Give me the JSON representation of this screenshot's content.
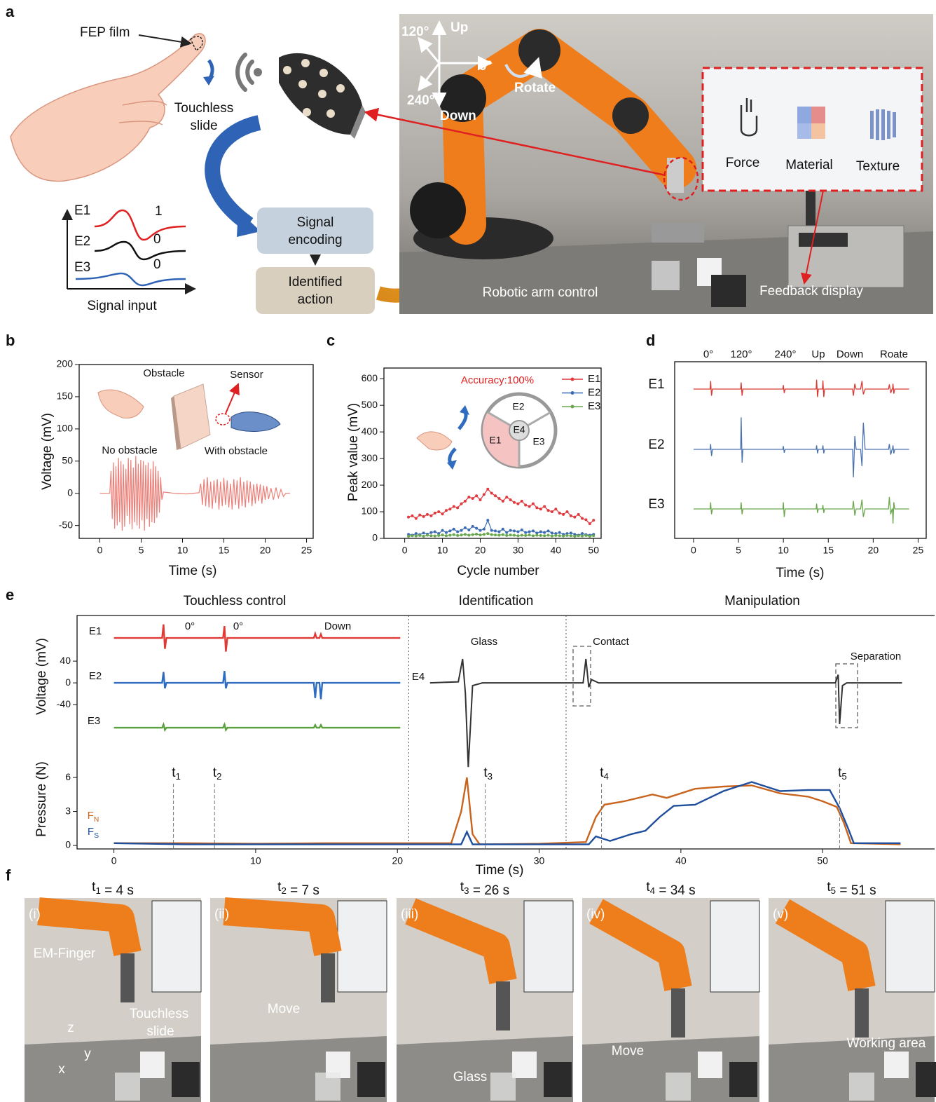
{
  "panel_labels": [
    "a",
    "b",
    "c",
    "d",
    "e",
    "f"
  ],
  "panel_a": {
    "fep_film": "FEP film",
    "touchless_slide": [
      "Touchless",
      "slide"
    ],
    "signal_input": {
      "rows": [
        {
          "name": "E1",
          "bit": "1"
        },
        {
          "name": "E2",
          "bit": "0"
        },
        {
          "name": "E3",
          "bit": "0"
        }
      ],
      "title": "Signal input"
    },
    "signal_encoding": [
      "Signal",
      "encoding"
    ],
    "identified_action": [
      "Identified",
      "action"
    ],
    "directions": {
      "angle_120": "120°",
      "up": "Up",
      "angle_0": "0°",
      "rotate": "Rotate",
      "angle_240": "240°",
      "down": "Down"
    },
    "screen": [
      "Force",
      "Material",
      "Texture"
    ],
    "robotic_arm_control": "Robotic arm control",
    "feedback_display": "Feedback display"
  },
  "chart_data": [
    {
      "type": "line",
      "x_label": "Time (s)",
      "y_label": "Voltage (mV)",
      "annotations": [
        "Obstacle",
        "Sensor",
        "No obstacle",
        "With obstacle"
      ],
      "xlim": [
        -2.5,
        25.8
      ],
      "xticks": [
        0,
        5,
        10,
        15,
        20,
        25
      ],
      "ylim": [
        -70,
        200
      ],
      "yticks": [
        -50,
        0,
        50,
        100,
        150,
        200
      ],
      "series": [
        {
          "color": "#ec7f78",
          "x": [
            0,
            1.2,
            1.35,
            1.5,
            1.65,
            1.8,
            1.95,
            2.1,
            2.25,
            2.4,
            2.55,
            2.7,
            2.85,
            3,
            3.15,
            3.3,
            3.45,
            3.6,
            3.75,
            3.9,
            4.05,
            4.2,
            4.35,
            4.5,
            4.65,
            4.8,
            4.95,
            5.1,
            5.25,
            5.4,
            5.55,
            5.7,
            5.85,
            6,
            6.15,
            6.3,
            6.45,
            6.6,
            6.75,
            6.9,
            7.05,
            7.2,
            7.35,
            7.5,
            7.7,
            9,
            10.5,
            12,
            12.2,
            12.4,
            12.6,
            12.8,
            13,
            13.2,
            13.4,
            13.6,
            13.8,
            14,
            14.2,
            14.4,
            14.6,
            14.8,
            15,
            15.2,
            15.4,
            15.6,
            15.8,
            16,
            16.2,
            16.4,
            16.6,
            16.8,
            17,
            17.2,
            17.4,
            17.6,
            17.8,
            18,
            18.2,
            18.4,
            18.6,
            18.8,
            19,
            19.2,
            19.4,
            19.6,
            19.8,
            20,
            20.2,
            20.4,
            20.7,
            21,
            21.3,
            21.6,
            21.9,
            22.2,
            22.5,
            23
          ],
          "values": [
            0,
            0,
            35,
            -40,
            48,
            -55,
            42,
            -50,
            55,
            -45,
            50,
            -58,
            45,
            -52,
            38,
            -35,
            55,
            -48,
            52,
            -56,
            40,
            -45,
            58,
            -50,
            46,
            -55,
            52,
            -42,
            50,
            -58,
            44,
            -40,
            48,
            -52,
            38,
            -45,
            50,
            -46,
            42,
            -38,
            35,
            -30,
            25,
            -10,
            2,
            0,
            -1,
            1,
            15,
            -18,
            22,
            -20,
            25,
            -22,
            18,
            -24,
            20,
            -15,
            22,
            -25,
            18,
            -20,
            24,
            -18,
            20,
            -22,
            15,
            -25,
            22,
            -18,
            20,
            -24,
            25,
            -20,
            18,
            -22,
            20,
            -15,
            18,
            -20,
            14,
            -16,
            15,
            -12,
            14,
            -16,
            12,
            -10,
            11,
            -9,
            8,
            -10,
            9,
            -7,
            6,
            -5,
            0,
            0
          ]
        }
      ]
    },
    {
      "type": "line",
      "x_label": "Cycle number",
      "y_label": "Peak value (mV)",
      "annotation": "Accuracy:100%",
      "inset_labels": [
        "E2",
        "E4",
        "E1",
        "E3"
      ],
      "xlim": [
        -5.5,
        52
      ],
      "xticks": [
        0,
        10,
        20,
        30,
        40,
        50
      ],
      "ylim": [
        0,
        640
      ],
      "yticks": [
        0,
        100,
        200,
        300,
        400,
        500,
        600
      ],
      "legend": "upper right",
      "x": [
        1,
        2,
        3,
        4,
        5,
        6,
        7,
        8,
        9,
        10,
        11,
        12,
        13,
        14,
        15,
        16,
        17,
        18,
        19,
        20,
        21,
        22,
        23,
        24,
        25,
        26,
        27,
        28,
        29,
        30,
        31,
        32,
        33,
        34,
        35,
        36,
        37,
        38,
        39,
        40,
        41,
        42,
        43,
        44,
        45,
        46,
        47,
        48,
        49,
        50
      ],
      "series": [
        {
          "name": "E1",
          "color": "#e0393e",
          "values": [
            80,
            85,
            75,
            88,
            82,
            90,
            85,
            95,
            100,
            92,
            105,
            110,
            120,
            115,
            130,
            140,
            155,
            150,
            160,
            145,
            165,
            185,
            170,
            160,
            150,
            140,
            155,
            145,
            135,
            130,
            140,
            125,
            120,
            130,
            115,
            110,
            120,
            105,
            100,
            110,
            95,
            90,
            100,
            85,
            80,
            90,
            75,
            70,
            55,
            68
          ]
        },
        {
          "name": "E2",
          "color": "#3c6cb4",
          "values": [
            15,
            12,
            18,
            14,
            20,
            16,
            22,
            25,
            18,
            30,
            22,
            28,
            35,
            25,
            30,
            40,
            32,
            45,
            38,
            30,
            35,
            68,
            30,
            28,
            25,
            35,
            22,
            30,
            28,
            25,
            32,
            22,
            25,
            28,
            20,
            25,
            22,
            28,
            20,
            18,
            22,
            15,
            18,
            20,
            15,
            12,
            18,
            14,
            12,
            15
          ]
        },
        {
          "name": "E3",
          "color": "#6aa84f",
          "values": [
            8,
            10,
            9,
            11,
            8,
            12,
            10,
            9,
            11,
            13,
            10,
            12,
            14,
            11,
            13,
            15,
            12,
            14,
            16,
            13,
            15,
            18,
            14,
            13,
            12,
            14,
            11,
            13,
            12,
            10,
            12,
            11,
            13,
            10,
            12,
            11,
            10,
            12,
            9,
            11,
            10,
            9,
            11,
            10,
            8,
            10,
            9,
            11,
            8,
            10
          ]
        }
      ]
    },
    {
      "type": "line",
      "x_label": "Time (s)",
      "columns": [
        "0°",
        "120°",
        "240°",
        "Up",
        "Down",
        "Roate"
      ],
      "xlim": [
        -2.1,
        25.9
      ],
      "xticks": [
        0,
        5,
        10,
        15,
        20,
        25
      ],
      "x": [
        0,
        1.85,
        1.9,
        2,
        2.1,
        5.25,
        5.3,
        5.4,
        5.5,
        9.95,
        10,
        10.1,
        10.2,
        13.65,
        13.7,
        13.8,
        13.9,
        14.35,
        14.4,
        14.5,
        14.6,
        17.7,
        17.8,
        17.95,
        18.1,
        18.6,
        18.75,
        18.9,
        19.1,
        21.7,
        21.8,
        21.95,
        22.1,
        22.15,
        22.2,
        22.3,
        22.4,
        24
      ],
      "series": [
        {
          "name": "E1",
          "color": "#d93a33",
          "values": [
            0,
            0,
            12,
            -10,
            0,
            0,
            10,
            -10,
            0,
            0,
            6,
            -6,
            0,
            0,
            14,
            -12,
            0,
            0,
            13,
            -12,
            0,
            0,
            -10,
            8,
            0,
            0,
            12,
            -8,
            0,
            0,
            7,
            -6,
            0,
            0,
            8,
            -7,
            0,
            0
          ]
        },
        {
          "name": "E2",
          "color": "#4a72b0",
          "values": [
            0,
            0,
            8,
            -10,
            0,
            0,
            48,
            -20,
            0,
            0,
            5,
            -5,
            0,
            0,
            6,
            -6,
            0,
            0,
            6,
            -6,
            0,
            0,
            -42,
            20,
            0,
            0,
            -25,
            40,
            0,
            0,
            8,
            -8,
            0,
            0,
            6,
            -6,
            0,
            0
          ]
        },
        {
          "name": "E3",
          "color": "#6aa84f",
          "values": [
            0,
            0,
            10,
            -8,
            0,
            0,
            10,
            -8,
            0,
            0,
            10,
            -12,
            0,
            0,
            8,
            -6,
            0,
            0,
            6,
            -6,
            0,
            0,
            12,
            -10,
            0,
            0,
            14,
            -12,
            0,
            0,
            18,
            -8,
            0,
            0,
            -22,
            10,
            0,
            0
          ]
        }
      ]
    },
    {
      "type": "line",
      "x_label": "Time (s)",
      "y_label": "Voltage (mV)",
      "y2_label": "Pressure (N)",
      "sections": [
        "Touchless control",
        "Identification",
        "Manipulation"
      ],
      "dividers": [
        20.8,
        31.9
      ],
      "annotations": [
        "0°",
        "0°",
        "Down",
        "Glass",
        "Contact",
        "Separation"
      ],
      "events": [
        {
          "label": "t",
          "sub": "1",
          "time": 4.2
        },
        {
          "label": "t",
          "sub": "2",
          "time": 7.1
        },
        {
          "label": "t",
          "sub": "3",
          "time": 26.2
        },
        {
          "label": "t",
          "sub": "4",
          "time": 34.4
        },
        {
          "label": "t",
          "sub": "5",
          "time": 51.2
        }
      ],
      "xlim": [
        -2.6,
        57.9
      ],
      "xticks": [
        0,
        10,
        20,
        30,
        40,
        50
      ],
      "ylim": [
        -165,
        124
      ],
      "yticks": [
        -40,
        0,
        40
      ],
      "y2lim": [
        -0.37,
        7.8
      ],
      "y2ticks": [
        0,
        3,
        6
      ],
      "series": [
        {
          "name": "E1",
          "color": "#e03a36",
          "x": [
            0,
            3.4,
            3.5,
            3.6,
            3.7,
            7.7,
            7.8,
            7.9,
            8,
            14.1,
            14.2,
            14.3,
            14.5,
            14.6,
            14.7,
            20.2
          ],
          "values": [
            0,
            0,
            25,
            -20,
            0,
            0,
            22,
            -25,
            0,
            0,
            8,
            0,
            0,
            7,
            0,
            0
          ]
        },
        {
          "name": "E2",
          "color": "#2f6cc0",
          "x": [
            0,
            3.4,
            3.5,
            3.6,
            3.7,
            7.7,
            7.8,
            7.9,
            8,
            14.1,
            14.2,
            14.3,
            14.5,
            14.6,
            14.7,
            20.2
          ],
          "values": [
            0,
            0,
            20,
            -10,
            0,
            0,
            22,
            -10,
            0,
            0,
            -28,
            0,
            0,
            -30,
            0,
            0
          ]
        },
        {
          "name": "E3",
          "color": "#5aa03c",
          "x": [
            0,
            3.4,
            3.5,
            3.6,
            3.7,
            7.7,
            7.8,
            7.9,
            8,
            14.1,
            14.2,
            14.3,
            14.5,
            14.6,
            14.7,
            20.2
          ],
          "values": [
            0,
            0,
            6,
            -4,
            0,
            0,
            6,
            -4,
            0,
            0,
            5,
            0,
            0,
            5,
            0,
            0
          ]
        },
        {
          "name": "E4",
          "color": "#333333",
          "x": [
            22.3,
            24.3,
            24.6,
            24.8,
            25,
            25.3,
            26,
            33.1,
            33.3,
            33.5,
            33.7,
            34.2,
            40,
            45,
            50.9,
            51.1,
            51.2,
            51.4,
            51.7,
            55.6
          ],
          "values": [
            0,
            2,
            44,
            -20,
            -155,
            -5,
            0,
            0,
            44,
            -8,
            6,
            0,
            0,
            0,
            0,
            15,
            -76,
            -5,
            0,
            0
          ]
        },
        {
          "name": "F",
          "sub": "N",
          "axis": "y2",
          "color": "#c8641e",
          "x": [
            0,
            5,
            10,
            15,
            20,
            23.8,
            24.5,
            24.9,
            25.3,
            25.8,
            30,
            33.3,
            34,
            34.6,
            36,
            38,
            39,
            41,
            43,
            45,
            47,
            49,
            50,
            51,
            51.5,
            52,
            55.5
          ],
          "values": [
            0.2,
            0.2,
            0.15,
            0.2,
            0.2,
            0.2,
            3,
            6,
            1,
            0.1,
            0.15,
            0.3,
            2.5,
            3.6,
            3.9,
            4.5,
            4.2,
            5,
            5.2,
            5.3,
            4.6,
            4.3,
            3.9,
            3.4,
            2,
            0.2,
            0.1
          ]
        },
        {
          "name": "F",
          "sub": "S",
          "axis": "y2",
          "color": "#1f4e9c",
          "x": [
            0,
            5,
            10,
            15,
            20,
            24.5,
            24.9,
            25.3,
            30,
            33.5,
            34,
            35,
            36.5,
            37.5,
            38.5,
            39.5,
            41,
            43,
            45,
            47,
            49,
            50.5,
            51.2,
            51.8,
            52.2,
            55.5
          ],
          "values": [
            0.2,
            0.1,
            0.1,
            0.1,
            0.1,
            0.1,
            1.2,
            0.1,
            0.1,
            0.1,
            0.8,
            0.4,
            1,
            1.3,
            2.5,
            3.5,
            3.6,
            4.8,
            5.6,
            4.8,
            4.9,
            4.9,
            3.3,
            1.5,
            0.2,
            0.2
          ]
        }
      ]
    }
  ],
  "panel_f": {
    "frames": [
      {
        "t": "t",
        "sub": "1",
        "rest": " = 4 s",
        "index": "(i)",
        "notes": [
          "EM-Finger",
          "Touchless",
          "slide",
          "z",
          "y",
          "x"
        ]
      },
      {
        "t": "t",
        "sub": "2",
        "rest": " = 7 s",
        "index": "(ii)",
        "notes": [
          "Move"
        ]
      },
      {
        "t": "t",
        "sub": "3",
        "rest": " = 26 s",
        "index": "(iii)",
        "notes": [
          "Glass"
        ]
      },
      {
        "t": "t",
        "sub": "4",
        "rest": " = 34 s",
        "index": "(iv)",
        "notes": [
          "Move"
        ]
      },
      {
        "t": "t",
        "sub": "5",
        "rest": " = 51 s",
        "index": "(v)",
        "notes": [
          "Working area"
        ]
      }
    ]
  }
}
